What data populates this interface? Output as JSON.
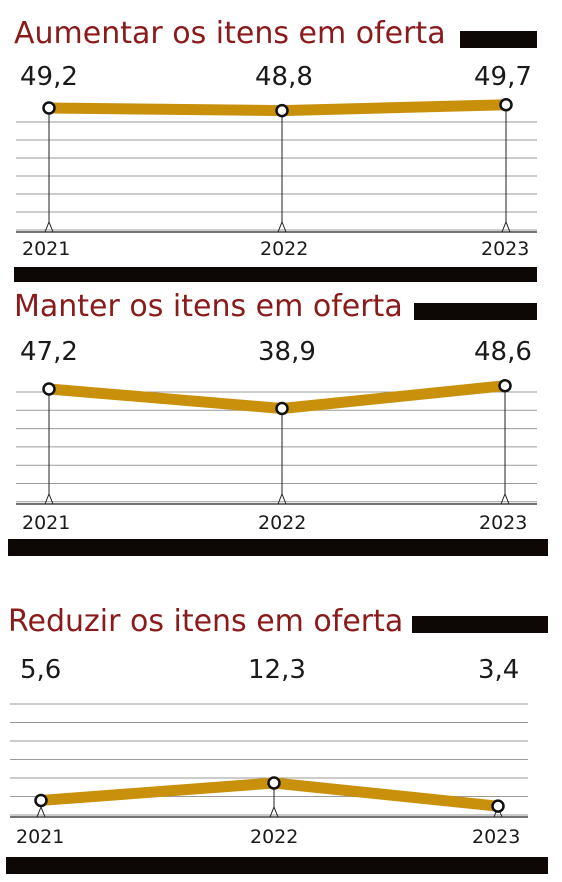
{
  "theme": {
    "line_color": "#c8900b",
    "title_color": "#8b1a1a",
    "bar_color": "#0d0806",
    "grid_color": "#9a9a9a"
  },
  "chart_data": [
    {
      "type": "line",
      "title": "Aumentar os itens em oferta",
      "categories": [
        "2021",
        "2022",
        "2023"
      ],
      "values": [
        49.2,
        48.8,
        49.7
      ],
      "value_labels": [
        "49,2",
        "48,8",
        "49,7"
      ]
    },
    {
      "type": "line",
      "title": "Manter os itens em oferta",
      "categories": [
        "2021",
        "2022",
        "2023"
      ],
      "values": [
        47.2,
        38.9,
        48.6
      ],
      "value_labels": [
        "47,2",
        "38,9",
        "48,6"
      ]
    },
    {
      "type": "line",
      "title": "Reduzir os itens em oferta",
      "categories": [
        "2021",
        "2022",
        "2023"
      ],
      "values": [
        5.6,
        12.3,
        3.4
      ],
      "value_labels": [
        "5,6",
        "12,3",
        "3,4"
      ]
    }
  ]
}
